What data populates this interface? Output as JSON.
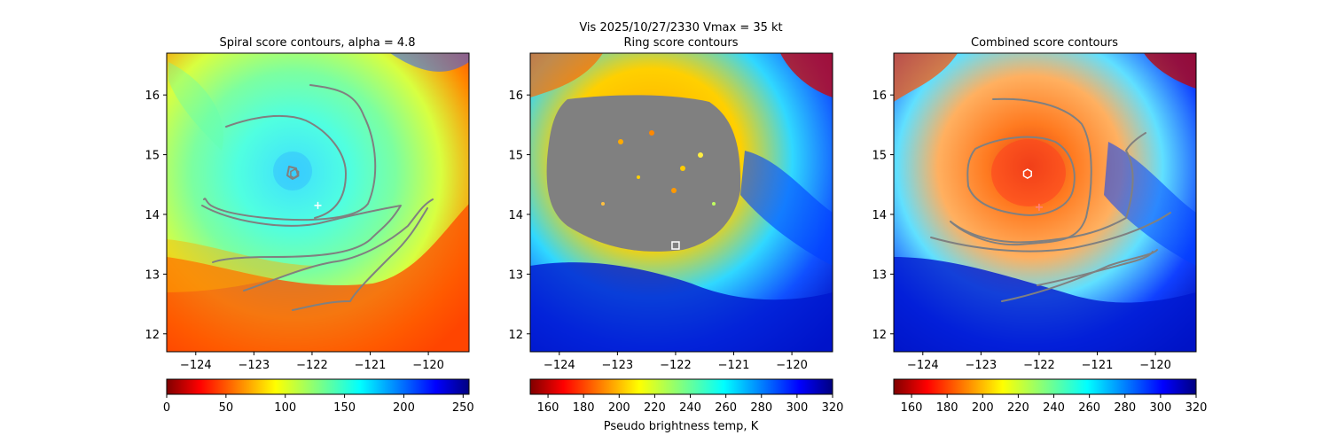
{
  "suptitle": "Vis  2025/10/27/2330    Vmax = 35 kt",
  "chart_data": [
    {
      "type": "heatmap",
      "title": "Spiral score contours, alpha =  4.8",
      "xlim": [
        -124.5,
        -119.3
      ],
      "ylim": [
        11.7,
        16.7
      ],
      "xticks": [
        -124,
        -123,
        -122,
        -121,
        -120
      ],
      "yticks": [
        12,
        13,
        14,
        15,
        16
      ],
      "xtick_labels": [
        "−124",
        "−123",
        "−122",
        "−121",
        "−120"
      ],
      "ytick_labels": [
        "12",
        "13",
        "14",
        "15",
        "16"
      ],
      "colorbar": {
        "colormap": "jet_r",
        "vmin": 0,
        "vmax": 255,
        "ticks": [
          0,
          50,
          100,
          150,
          200,
          250
        ],
        "tick_labels": [
          "0",
          "50",
          "100",
          "150",
          "200",
          "250"
        ],
        "label": ""
      },
      "markers": [
        {
          "type": "plus",
          "lon": -121.9,
          "lat": 14.15,
          "color": "#ffffff"
        },
        {
          "type": "hexagon",
          "lon": -122.3,
          "lat": 14.68,
          "color": "#808080"
        }
      ]
    },
    {
      "type": "heatmap",
      "title": "Ring score contours",
      "xlim": [
        -124.5,
        -119.3
      ],
      "ylim": [
        11.7,
        16.7
      ],
      "xticks": [
        -124,
        -123,
        -122,
        -121,
        -120
      ],
      "yticks": [
        12,
        13,
        14,
        15,
        16
      ],
      "xtick_labels": [
        "−124",
        "−123",
        "−122",
        "−121",
        "−120"
      ],
      "ytick_labels": [
        "12",
        "13",
        "14",
        "15",
        "16"
      ],
      "colorbar": {
        "colormap": "jet_r",
        "vmin": 150,
        "vmax": 320,
        "ticks": [
          160,
          180,
          200,
          220,
          240,
          260,
          280,
          300,
          320
        ],
        "tick_labels": [
          "160",
          "180",
          "200",
          "220",
          "240",
          "260",
          "280",
          "300",
          "320"
        ],
        "label": "Pseudo brightness temp, K"
      },
      "markers": [
        {
          "type": "square",
          "lon": -122.0,
          "lat": 13.48,
          "color": "#ffffff"
        }
      ]
    },
    {
      "type": "heatmap",
      "title": "Combined score contours",
      "xlim": [
        -124.5,
        -119.3
      ],
      "ylim": [
        11.7,
        16.7
      ],
      "xticks": [
        -124,
        -123,
        -122,
        -121,
        -120
      ],
      "yticks": [
        12,
        13,
        14,
        15,
        16
      ],
      "xtick_labels": [
        "−124",
        "−123",
        "−122",
        "−121",
        "−120"
      ],
      "ytick_labels": [
        "12",
        "13",
        "14",
        "15",
        "16"
      ],
      "colorbar": {
        "colormap": "jet_r",
        "vmin": 150,
        "vmax": 320,
        "ticks": [
          160,
          180,
          200,
          220,
          240,
          260,
          280,
          300,
          320
        ],
        "tick_labels": [
          "160",
          "180",
          "200",
          "220",
          "240",
          "260",
          "280",
          "300",
          "320"
        ],
        "label": ""
      },
      "markers": [
        {
          "type": "plus",
          "lon": -122.0,
          "lat": 14.12,
          "color": "#ff8080"
        },
        {
          "type": "hexagon",
          "lon": -122.2,
          "lat": 14.68,
          "color": "#ffffff"
        }
      ]
    }
  ]
}
